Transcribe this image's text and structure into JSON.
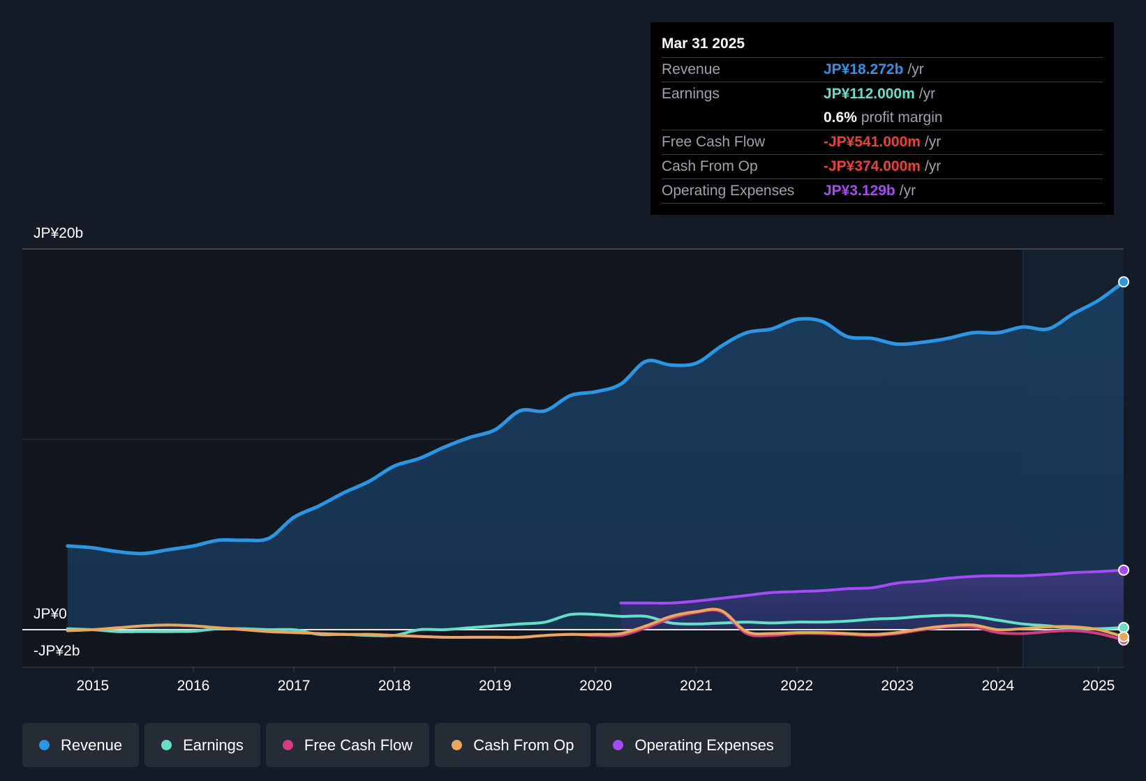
{
  "chart_data": {
    "type": "area",
    "y_unit": "JP¥",
    "ylim": [
      -2,
      20
    ],
    "y_tick_labels": [
      {
        "value": 20,
        "label": "JP¥20b"
      },
      {
        "value": 0,
        "label": "JP¥0"
      },
      {
        "value": -2,
        "label": "-JP¥2b"
      }
    ],
    "xlim": [
      2014.3,
      2025.25
    ],
    "x_ticks": [
      {
        "value": 2015,
        "label": "2015"
      },
      {
        "value": 2016,
        "label": "2016"
      },
      {
        "value": 2017,
        "label": "2017"
      },
      {
        "value": 2018,
        "label": "2018"
      },
      {
        "value": 2019,
        "label": "2019"
      },
      {
        "value": 2020,
        "label": "2020"
      },
      {
        "value": 2021,
        "label": "2021"
      },
      {
        "value": 2022,
        "label": "2022"
      },
      {
        "value": 2023,
        "label": "2023"
      },
      {
        "value": 2024,
        "label": "2024"
      },
      {
        "value": 2025,
        "label": "2025"
      }
    ],
    "forecast_start": 2024.25,
    "series": [
      {
        "name": "Revenue",
        "color": "#2b96e3",
        "area": true,
        "x": [
          2014.75,
          2015.0,
          2015.25,
          2015.5,
          2015.75,
          2016.0,
          2016.25,
          2016.5,
          2016.75,
          2017.0,
          2017.25,
          2017.5,
          2017.75,
          2018.0,
          2018.25,
          2018.5,
          2018.75,
          2019.0,
          2019.25,
          2019.5,
          2019.75,
          2020.0,
          2020.25,
          2020.5,
          2020.75,
          2021.0,
          2021.25,
          2021.5,
          2021.75,
          2022.0,
          2022.25,
          2022.5,
          2022.75,
          2023.0,
          2023.25,
          2023.5,
          2023.75,
          2024.0,
          2024.25,
          2024.5,
          2024.75,
          2025.0,
          2025.25
        ],
        "values": [
          4.4,
          4.3,
          4.1,
          4.0,
          4.2,
          4.4,
          4.7,
          4.7,
          4.8,
          5.9,
          6.5,
          7.2,
          7.8,
          8.6,
          9.0,
          9.6,
          10.1,
          10.5,
          11.5,
          11.5,
          12.3,
          12.5,
          12.9,
          14.1,
          13.9,
          14.0,
          14.9,
          15.6,
          15.8,
          16.3,
          16.2,
          15.4,
          15.3,
          15.0,
          15.1,
          15.3,
          15.6,
          15.6,
          15.9,
          15.8,
          16.6,
          17.3,
          18.272
        ]
      },
      {
        "name": "Operating Expenses",
        "color": "#a44bf5",
        "area": true,
        "x": [
          2020.25,
          2020.5,
          2020.75,
          2021.0,
          2021.25,
          2021.5,
          2021.75,
          2022.0,
          2022.25,
          2022.5,
          2022.75,
          2023.0,
          2023.25,
          2023.5,
          2023.75,
          2024.0,
          2024.25,
          2024.5,
          2024.75,
          2025.0,
          2025.25
        ],
        "values": [
          1.4,
          1.4,
          1.4,
          1.5,
          1.65,
          1.8,
          1.95,
          2.0,
          2.05,
          2.15,
          2.2,
          2.45,
          2.55,
          2.7,
          2.8,
          2.83,
          2.83,
          2.9,
          3.0,
          3.05,
          3.129
        ]
      },
      {
        "name": "Earnings",
        "color": "#64e0c8",
        "area": false,
        "x": [
          2014.75,
          2015.0,
          2015.25,
          2015.5,
          2015.75,
          2016.0,
          2016.25,
          2016.5,
          2016.75,
          2017.0,
          2017.25,
          2017.5,
          2017.75,
          2018.0,
          2018.25,
          2018.5,
          2018.75,
          2019.0,
          2019.25,
          2019.5,
          2019.75,
          2020.0,
          2020.25,
          2020.5,
          2020.75,
          2021.0,
          2021.25,
          2021.5,
          2021.75,
          2022.0,
          2022.25,
          2022.5,
          2022.75,
          2023.0,
          2023.25,
          2023.5,
          2023.75,
          2024.0,
          2024.25,
          2024.5,
          2024.75,
          2025.0,
          2025.25
        ],
        "values": [
          0.05,
          0.0,
          -0.1,
          -0.1,
          -0.1,
          -0.08,
          0.05,
          0.05,
          0.0,
          0.0,
          -0.25,
          -0.25,
          -0.3,
          -0.3,
          0.0,
          0.0,
          0.1,
          0.2,
          0.3,
          0.4,
          0.8,
          0.8,
          0.7,
          0.7,
          0.35,
          0.3,
          0.35,
          0.4,
          0.35,
          0.4,
          0.4,
          0.45,
          0.55,
          0.6,
          0.7,
          0.75,
          0.7,
          0.5,
          0.3,
          0.2,
          0.05,
          0.05,
          0.112
        ]
      },
      {
        "name": "Free Cash Flow",
        "color": "#d63c82",
        "area": false,
        "x": [
          2014.75,
          2015.0,
          2015.25,
          2015.5,
          2015.75,
          2016.0,
          2016.25,
          2016.5,
          2016.75,
          2017.0,
          2017.25,
          2017.5,
          2017.75,
          2018.0,
          2018.25,
          2018.5,
          2018.75,
          2019.0,
          2019.25,
          2019.5,
          2019.75,
          2020.0,
          2020.25,
          2020.5,
          2020.75,
          2021.0,
          2021.25,
          2021.5,
          2021.75,
          2022.0,
          2022.25,
          2022.5,
          2022.75,
          2023.0,
          2023.25,
          2023.5,
          2023.75,
          2024.0,
          2024.25,
          2024.5,
          2024.75,
          2025.0,
          2025.25
        ],
        "values": [
          -0.05,
          0.0,
          0.1,
          0.2,
          0.25,
          0.2,
          0.1,
          0.0,
          -0.1,
          -0.15,
          -0.2,
          -0.25,
          -0.25,
          -0.3,
          -0.35,
          -0.4,
          -0.4,
          -0.4,
          -0.4,
          -0.3,
          -0.25,
          -0.3,
          -0.3,
          0.1,
          0.6,
          0.9,
          0.95,
          -0.2,
          -0.3,
          -0.2,
          -0.2,
          -0.25,
          -0.3,
          -0.2,
          0.0,
          0.15,
          0.15,
          -0.15,
          -0.2,
          -0.1,
          -0.05,
          -0.2,
          -0.541
        ]
      },
      {
        "name": "Cash From Op",
        "color": "#e8a95b",
        "area": false,
        "x": [
          2014.75,
          2015.0,
          2015.25,
          2015.5,
          2015.75,
          2016.0,
          2016.25,
          2016.5,
          2016.75,
          2017.0,
          2017.25,
          2017.5,
          2017.75,
          2018.0,
          2018.25,
          2018.5,
          2018.75,
          2019.0,
          2019.25,
          2019.5,
          2019.75,
          2020.0,
          2020.25,
          2020.5,
          2020.75,
          2021.0,
          2021.25,
          2021.5,
          2021.75,
          2022.0,
          2022.25,
          2022.5,
          2022.75,
          2023.0,
          2023.25,
          2023.5,
          2023.75,
          2024.0,
          2024.25,
          2024.5,
          2024.75,
          2025.0,
          2025.25
        ],
        "values": [
          -0.05,
          0.0,
          0.1,
          0.2,
          0.25,
          0.2,
          0.1,
          0.0,
          -0.1,
          -0.15,
          -0.2,
          -0.25,
          -0.25,
          -0.3,
          -0.35,
          -0.4,
          -0.4,
          -0.4,
          -0.4,
          -0.3,
          -0.25,
          -0.25,
          -0.2,
          0.2,
          0.7,
          0.95,
          1.0,
          -0.1,
          -0.2,
          -0.15,
          -0.15,
          -0.2,
          -0.25,
          -0.15,
          0.05,
          0.2,
          0.25,
          0.0,
          0.05,
          0.15,
          0.15,
          0.0,
          -0.374
        ]
      }
    ]
  },
  "tooltip": {
    "date": "Mar 31 2025",
    "rows": [
      {
        "label": "Revenue",
        "value": "JP¥18.272b",
        "unit": "/yr",
        "color": "#2b96e3"
      },
      {
        "label": "Earnings",
        "value": "JP¥112.000m",
        "unit": "/yr",
        "color": "#64e0c8"
      },
      {
        "label": "Free Cash Flow",
        "value": "-JP¥541.000m",
        "unit": "/yr",
        "color": "#e8413f"
      },
      {
        "label": "Cash From Op",
        "value": "-JP¥374.000m",
        "unit": "/yr",
        "color": "#e8413f"
      },
      {
        "label": "Operating Expenses",
        "value": "JP¥3.129b",
        "unit": "/yr",
        "color": "#a44bf5"
      }
    ],
    "profit_margin": {
      "value": "0.6%",
      "label": "profit margin"
    }
  },
  "legend": [
    {
      "label": "Revenue",
      "color": "#2b96e3"
    },
    {
      "label": "Earnings",
      "color": "#64e0c8"
    },
    {
      "label": "Free Cash Flow",
      "color": "#d63c82"
    },
    {
      "label": "Cash From Op",
      "color": "#e8a95b"
    },
    {
      "label": "Operating Expenses",
      "color": "#a44bf5"
    }
  ]
}
